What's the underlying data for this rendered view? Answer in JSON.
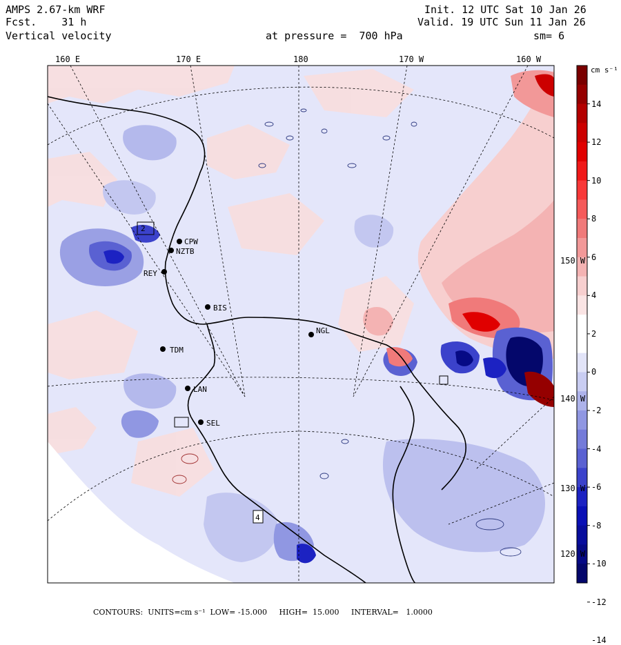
{
  "header": {
    "model": "AMPS 2.67-km WRF",
    "forecast": "Fcst.    31 h",
    "variable": "Vertical velocity",
    "init": "Init. 12 UTC Sat 10 Jan 26",
    "valid": "Valid. 19 UTC Sun 11 Jan 26",
    "level": "at pressure =  700 hPa",
    "smoothing": "sm= 6"
  },
  "lon_top": [
    "160 E",
    "170 E",
    "180",
    "170 W",
    "160 W"
  ],
  "lat_right": [
    "150 W",
    "140 W",
    "130 W",
    "120 W"
  ],
  "colorbar": {
    "unit": "cm s⁻¹",
    "labels": [
      "14",
      "12",
      "10",
      "8",
      "6",
      "4",
      "2",
      "0",
      "-2",
      "-4",
      "-6",
      "-8",
      "-10",
      "-12",
      "-14"
    ],
    "colors": [
      "#7a0000",
      "#950000",
      "#b30000",
      "#cc0000",
      "#e00000",
      "#f01818",
      "#f83838",
      "#f55a5a",
      "#f07a7a",
      "#f29898",
      "#f4b3b3",
      "#f7cfcf",
      "#fae4e4",
      "#ffffff",
      "#ffffff",
      "#e2e4f8",
      "#c9cdf2",
      "#adb2ea",
      "#9097e2",
      "#747bd9",
      "#5a61d2",
      "#3b42cb",
      "#1c22c2",
      "#0a10b5",
      "#080d9c",
      "#060a85",
      "#04076b"
    ]
  },
  "stations": [
    {
      "label": "CPW"
    },
    {
      "label": "NZTB"
    },
    {
      "label": "REY"
    },
    {
      "label": "BIS"
    },
    {
      "label": "NGL"
    },
    {
      "label": "TDM"
    },
    {
      "label": "LAN"
    },
    {
      "label": "SEL"
    }
  ],
  "domain_boxes": [
    "2",
    "4"
  ],
  "footer": {
    "contours": "CONTOURS:  UNITS=cm s⁻¹  LOW= -15.000     HIGH=  15.000     INTERVAL=   1.0000"
  }
}
